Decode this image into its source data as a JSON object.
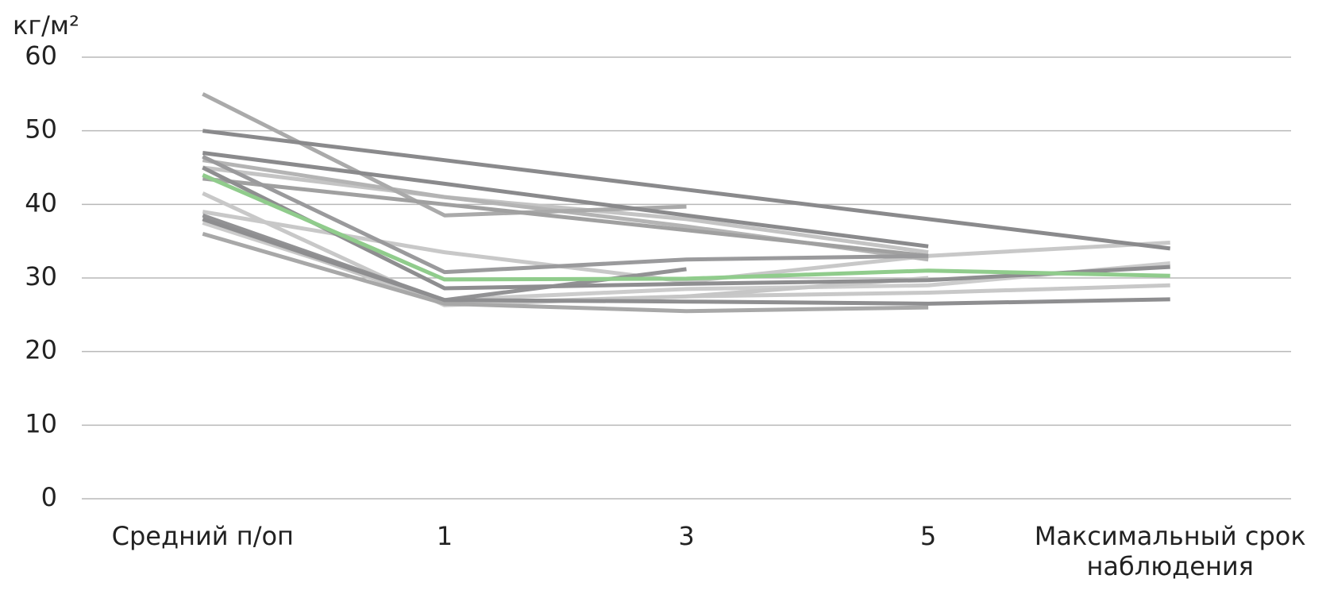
{
  "chart_data": {
    "type": "line",
    "y_label": "кг/м²",
    "categories": [
      "Средний п/оп",
      "1",
      "3",
      "5",
      "Максимальный срок наблюдения"
    ],
    "ylim": [
      0,
      60
    ],
    "yticks": [
      0,
      10,
      20,
      30,
      40,
      50,
      60
    ],
    "grid": true,
    "series": [
      {
        "color": "#c8c8c8",
        "values": [
          39,
          33.5,
          29.5,
          33,
          34.8
        ]
      },
      {
        "color": "#c8c8c8",
        "values": [
          41.5,
          26.3,
          27.5,
          28,
          29
        ]
      },
      {
        "color": "#cccccc",
        "values": [
          37.5,
          27,
          28.5,
          29,
          32
        ]
      },
      {
        "color": "#c4c4c4",
        "values": [
          45,
          41,
          38,
          33.5,
          null
        ]
      },
      {
        "color": "#c6c6c6",
        "values": [
          38,
          26.5,
          27.5,
          30,
          null
        ]
      },
      {
        "color": "#b4b4b4",
        "values": [
          46,
          41,
          37,
          32.5,
          null
        ]
      },
      {
        "color": "#aaaaaa",
        "values": [
          55,
          38.5,
          39.7,
          null,
          null
        ]
      },
      {
        "color": "#a8a8a8",
        "values": [
          36,
          26.5,
          25.5,
          26,
          null
        ]
      },
      {
        "color": "#a0a0a0",
        "values": [
          43.5,
          40,
          36.5,
          33,
          null
        ]
      },
      {
        "color": "#9a9a9c",
        "values": [
          46.5,
          30.8,
          32.5,
          33,
          null
        ]
      },
      {
        "color": "#929294",
        "values": [
          38.5,
          27,
          31.2,
          null,
          null
        ]
      },
      {
        "color": "#8e8e90",
        "values": [
          38,
          27,
          26.8,
          26.5,
          27.1
        ]
      },
      {
        "color": "#8e8e90",
        "values": [
          45,
          28.6,
          29.2,
          29.7,
          31.5
        ]
      },
      {
        "color": "#8a8a8c",
        "values": [
          47,
          42.8,
          38.5,
          34.3,
          null
        ]
      },
      {
        "color": "#8a8a8c",
        "values": [
          50,
          46,
          42,
          38,
          34
        ]
      },
      {
        "color": "#90cc8c",
        "values": [
          44,
          29.8,
          29.9,
          31,
          30.3
        ]
      }
    ]
  }
}
